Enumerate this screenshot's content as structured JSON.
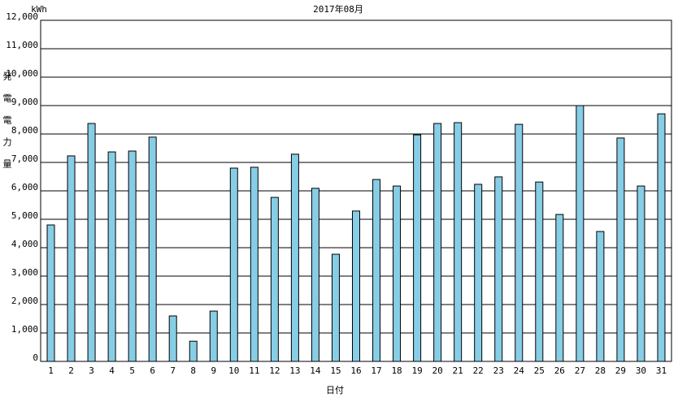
{
  "chart_data": {
    "type": "bar",
    "title": "2017年08月",
    "y_unit": "kWh",
    "y_label": "発電電力量",
    "x_label": "日付",
    "categories": [
      "1",
      "2",
      "3",
      "4",
      "5",
      "6",
      "7",
      "8",
      "9",
      "10",
      "11",
      "12",
      "13",
      "14",
      "15",
      "16",
      "17",
      "18",
      "19",
      "20",
      "21",
      "22",
      "23",
      "24",
      "25",
      "26",
      "27",
      "28",
      "29",
      "30",
      "31"
    ],
    "values": [
      4800,
      7230,
      8370,
      7370,
      7400,
      7890,
      1600,
      710,
      1770,
      6800,
      6830,
      5770,
      7290,
      6090,
      3770,
      5290,
      6400,
      6170,
      7970,
      8370,
      8400,
      6230,
      6490,
      8340,
      6310,
      5170,
      9000,
      4570,
      7860,
      6170,
      8710
    ],
    "color": "#87cde6",
    "ylim": [
      0,
      12000
    ],
    "yticks": [
      0,
      {
        "value": 1000,
        "label": "1,000"
      },
      {
        "value": 2000,
        "label": "2,000"
      },
      {
        "value": 3000,
        "label": "3,000"
      },
      {
        "value": 4000,
        "label": "4,000"
      },
      {
        "value": 5000,
        "label": "5,000"
      },
      {
        "value": 6000,
        "label": "6,000"
      },
      {
        "value": 7000,
        "label": "7,000"
      },
      {
        "value": 8000,
        "label": "8,000"
      },
      {
        "value": 9000,
        "label": "9,000"
      },
      {
        "value": 10000,
        "label": "10,000"
      },
      {
        "value": 11000,
        "label": "11,000"
      },
      {
        "value": 12000,
        "label": "12,000"
      }
    ],
    "grid": true
  }
}
